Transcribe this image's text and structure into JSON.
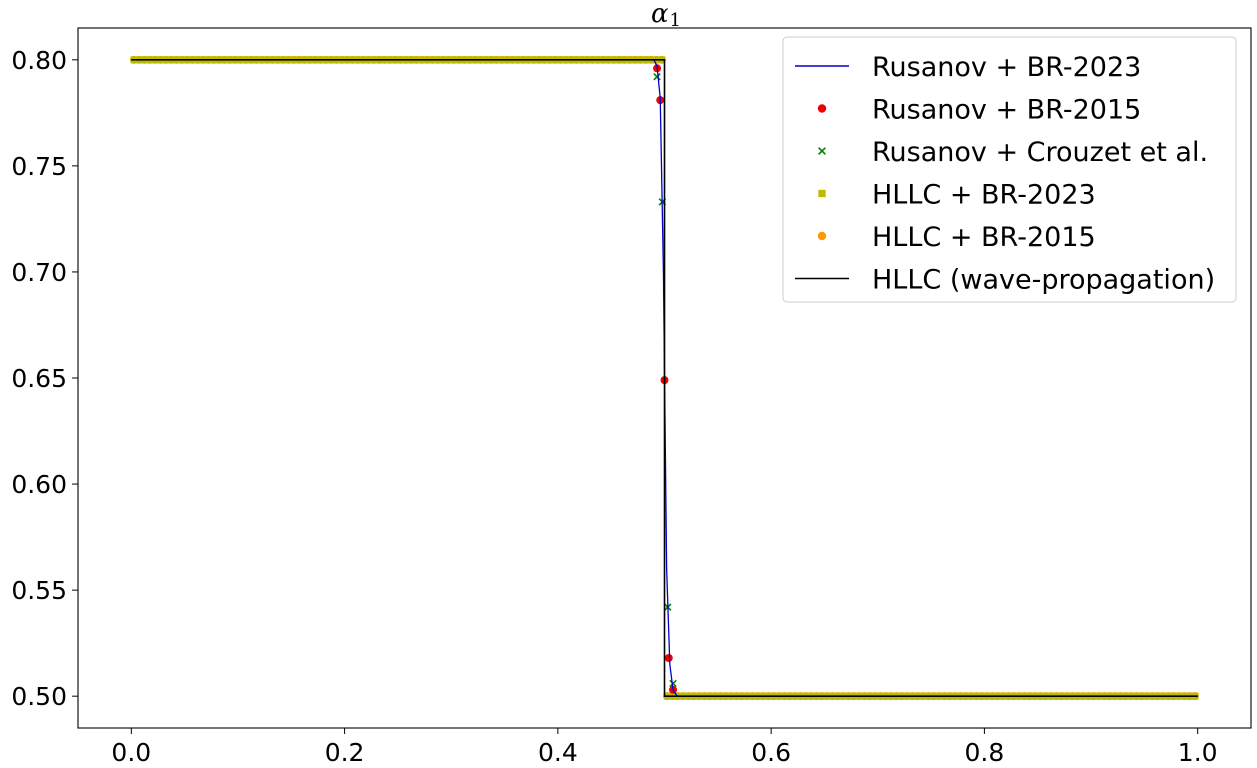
{
  "chart_data": {
    "type": "line",
    "title": "α",
    "title_subscript": "1",
    "xlabel": "",
    "ylabel": "",
    "xlim": [
      -0.05,
      1.05
    ],
    "ylim": [
      0.485,
      0.815
    ],
    "xticks": [
      0.0,
      0.2,
      0.4,
      0.6,
      0.8,
      1.0
    ],
    "xtick_labels": [
      "0.0",
      "0.2",
      "0.4",
      "0.6",
      "0.8",
      "1.0"
    ],
    "yticks": [
      0.5,
      0.55,
      0.6,
      0.65,
      0.7,
      0.75,
      0.8
    ],
    "ytick_labels": [
      "0.50",
      "0.55",
      "0.60",
      "0.65",
      "0.70",
      "0.75",
      "0.80"
    ],
    "grid": false,
    "legend_position": "top-right",
    "series": [
      {
        "name": "Rusanov + BR-2023",
        "style": "line",
        "color": "#0000cc",
        "x": [
          0.0,
          0.49,
          0.493,
          0.496,
          0.499,
          0.502,
          0.505,
          0.508,
          0.512,
          1.0
        ],
        "y": [
          0.8,
          0.8,
          0.797,
          0.782,
          0.7,
          0.56,
          0.515,
          0.503,
          0.5,
          0.5
        ]
      },
      {
        "name": "Rusanov + BR-2015",
        "style": "marker-circle",
        "color": "#ee0000",
        "x": [
          0.493,
          0.496,
          0.5,
          0.504,
          0.508
        ],
        "y": [
          0.796,
          0.781,
          0.649,
          0.518,
          0.503
        ]
      },
      {
        "name": "Rusanov + Crouzet et al.",
        "style": "marker-x",
        "color": "#008000",
        "x": [
          0.493,
          0.498,
          0.503,
          0.508
        ],
        "y": [
          0.792,
          0.733,
          0.542,
          0.506
        ]
      },
      {
        "name": "HLLC + BR-2023",
        "style": "marker-square",
        "color": "#bbbb00",
        "steps": [
          [
            0.0,
            0.5,
            0.8
          ],
          [
            0.5,
            1.0,
            0.5
          ]
        ]
      },
      {
        "name": "HLLC + BR-2015",
        "style": "marker-circle",
        "color": "#ff9900",
        "steps": [
          [
            0.0,
            0.5,
            0.8
          ],
          [
            0.5,
            1.0,
            0.5
          ]
        ]
      },
      {
        "name": "HLLC (wave-propagation)",
        "style": "line",
        "color": "#000000",
        "x": [
          0.0,
          0.5,
          0.5,
          1.0
        ],
        "y": [
          0.8,
          0.8,
          0.5,
          0.5
        ]
      }
    ]
  }
}
